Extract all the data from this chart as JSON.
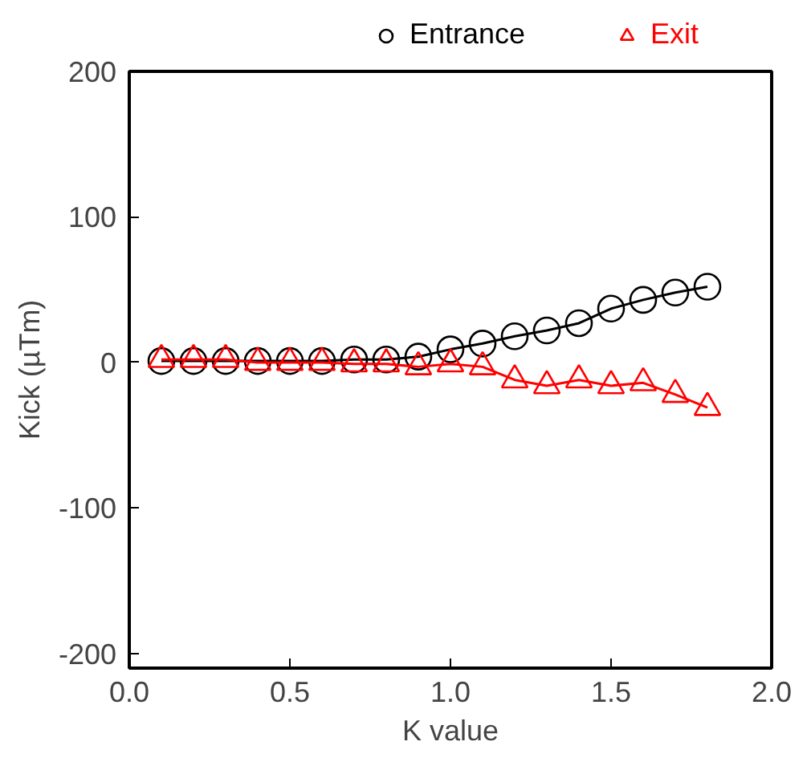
{
  "chart_data": {
    "type": "line",
    "xlabel": "K value",
    "ylabel": "Kick (µTm)",
    "x": [
      0.1,
      0.2,
      0.3,
      0.4,
      0.5,
      0.6,
      0.7,
      0.8,
      0.9,
      1.0,
      1.1,
      1.2,
      1.3,
      1.4,
      1.5,
      1.6,
      1.7,
      1.8
    ],
    "series": [
      {
        "name": "Entrance",
        "color": "#000000",
        "marker": "circle",
        "values": [
          1,
          1,
          1,
          1,
          1,
          1,
          2,
          2,
          4,
          9,
          13,
          18,
          22,
          27,
          37,
          43,
          48,
          52
        ]
      },
      {
        "name": "Exit",
        "color": "#ff0000",
        "marker": "triangle",
        "values": [
          2,
          2,
          2,
          0,
          0,
          0,
          -1,
          -1,
          -3,
          -1,
          -3,
          -12,
          -16,
          -12,
          -16,
          -14,
          -22,
          -31
        ]
      }
    ],
    "xlim": [
      0,
      2
    ],
    "xticks": [
      {
        "value": 0,
        "label": "0.0"
      },
      {
        "value": 0.5,
        "label": "0.5"
      },
      {
        "value": 1,
        "label": "1.0"
      },
      {
        "value": 1.5,
        "label": "1.5"
      },
      {
        "value": 2,
        "label": "2.0"
      }
    ],
    "ylim": [
      -210,
      200
    ],
    "yticks": [
      -200,
      -100,
      0,
      100,
      200
    ],
    "grid": false,
    "legend": "top",
    "line_style": "solid"
  }
}
